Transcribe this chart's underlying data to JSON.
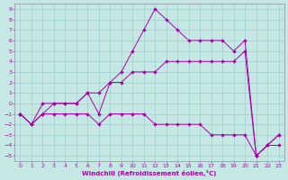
{
  "xlabel": "Windchill (Refroidissement éolien,°C)",
  "background_color": "#c5e8e4",
  "grid_color": "#9ecece",
  "line_color": "#aa00aa",
  "spine_color": "#9090a0",
  "xlim": [
    -0.5,
    23.5
  ],
  "ylim": [
    -5.5,
    9.5
  ],
  "xticks": [
    0,
    1,
    2,
    3,
    4,
    5,
    6,
    7,
    8,
    9,
    10,
    11,
    12,
    13,
    14,
    15,
    16,
    17,
    18,
    19,
    20,
    21,
    22,
    23
  ],
  "yticks": [
    -5,
    -4,
    -3,
    -2,
    -1,
    0,
    1,
    2,
    3,
    4,
    5,
    6,
    7,
    8,
    9
  ],
  "curve_top_x": [
    0,
    1,
    2,
    3,
    4,
    5,
    6,
    7,
    8,
    9,
    10,
    11,
    12,
    13,
    14,
    15,
    16,
    17,
    18,
    19,
    20,
    21,
    22,
    23
  ],
  "curve_top_y": [
    -1,
    -2,
    -1,
    0,
    0,
    0,
    1,
    -1,
    2,
    3,
    5,
    7,
    9,
    8,
    7,
    6,
    6,
    6,
    6,
    5,
    6,
    -5,
    -4,
    -4
  ],
  "curve_mid_x": [
    0,
    1,
    2,
    3,
    4,
    5,
    6,
    7,
    8,
    9,
    10,
    11,
    12,
    13,
    14,
    15,
    16,
    17,
    18,
    19,
    20,
    21,
    22,
    23
  ],
  "curve_mid_y": [
    -1,
    -2,
    0,
    0,
    0,
    0,
    1,
    1,
    2,
    2,
    3,
    3,
    3,
    4,
    4,
    4,
    4,
    4,
    4,
    4,
    5,
    -5,
    -4,
    -3
  ],
  "curve_bot_x": [
    0,
    1,
    2,
    3,
    4,
    5,
    6,
    7,
    8,
    9,
    10,
    11,
    12,
    13,
    14,
    15,
    16,
    17,
    18,
    19,
    20,
    21,
    22,
    23
  ],
  "curve_bot_y": [
    -1,
    -2,
    -1,
    -1,
    -1,
    -1,
    -1,
    -2,
    -1,
    -1,
    -1,
    -1,
    -2,
    -2,
    -2,
    -2,
    -2,
    -3,
    -3,
    -3,
    -3,
    -5,
    -4,
    -3
  ]
}
